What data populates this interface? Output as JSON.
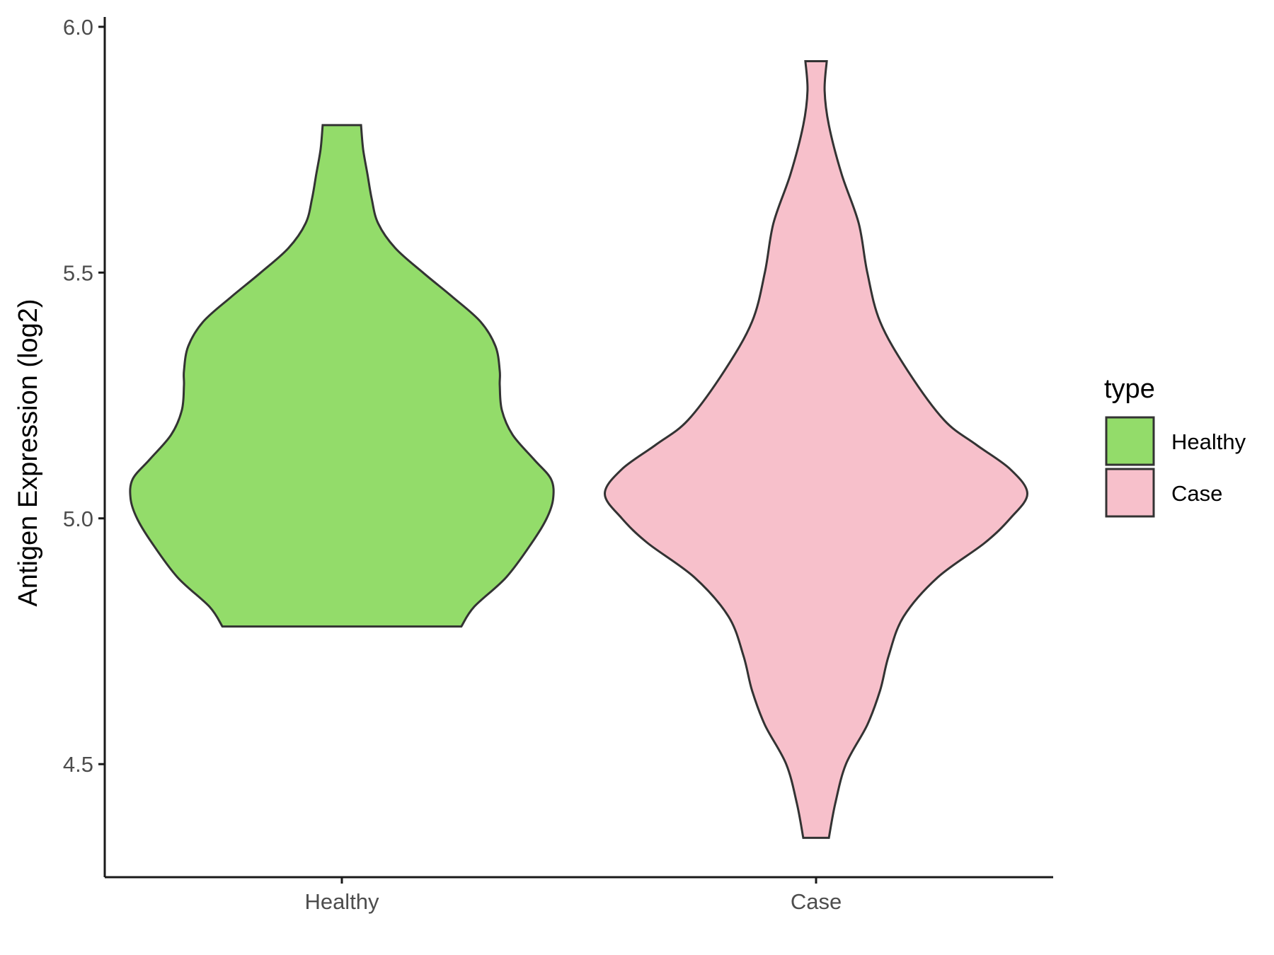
{
  "chart_data": {
    "type": "violin",
    "ylabel": "Antigen Expression (log2)",
    "xlabel": "",
    "categories": [
      "Healthy",
      "Case"
    ],
    "ylim": [
      4.27,
      6.02
    ],
    "yticks": [
      "4.5",
      "5.0",
      "5.5",
      "6.0"
    ],
    "grid": false,
    "legend": {
      "title": "type",
      "position": "right",
      "entries": [
        {
          "label": "Healthy",
          "color": "#93dc6a"
        },
        {
          "label": "Case",
          "color": "#f7c0cb"
        }
      ]
    },
    "series": [
      {
        "category": "Healthy",
        "color": "#93dc6a",
        "min": 4.78,
        "max": 5.8,
        "density": [
          [
            4.78,
            0.56
          ],
          [
            4.82,
            0.62
          ],
          [
            4.88,
            0.77
          ],
          [
            4.95,
            0.89
          ],
          [
            5.0,
            0.96
          ],
          [
            5.04,
            0.99
          ],
          [
            5.08,
            0.98
          ],
          [
            5.12,
            0.9
          ],
          [
            5.17,
            0.8
          ],
          [
            5.22,
            0.75
          ],
          [
            5.27,
            0.74
          ],
          [
            5.3,
            0.74
          ],
          [
            5.35,
            0.72
          ],
          [
            5.4,
            0.65
          ],
          [
            5.45,
            0.52
          ],
          [
            5.5,
            0.38
          ],
          [
            5.55,
            0.25
          ],
          [
            5.6,
            0.17
          ],
          [
            5.65,
            0.14
          ],
          [
            5.7,
            0.12
          ],
          [
            5.75,
            0.1
          ],
          [
            5.8,
            0.09
          ]
        ]
      },
      {
        "category": "Case",
        "color": "#f7c0cb",
        "min": 4.35,
        "max": 5.93,
        "density": [
          [
            4.35,
            0.06
          ],
          [
            4.42,
            0.09
          ],
          [
            4.5,
            0.14
          ],
          [
            4.58,
            0.24
          ],
          [
            4.65,
            0.3
          ],
          [
            4.72,
            0.34
          ],
          [
            4.8,
            0.41
          ],
          [
            4.88,
            0.57
          ],
          [
            4.95,
            0.79
          ],
          [
            5.0,
            0.91
          ],
          [
            5.05,
            0.99
          ],
          [
            5.1,
            0.91
          ],
          [
            5.15,
            0.75
          ],
          [
            5.2,
            0.6
          ],
          [
            5.3,
            0.43
          ],
          [
            5.4,
            0.3
          ],
          [
            5.5,
            0.24
          ],
          [
            5.6,
            0.2
          ],
          [
            5.7,
            0.12
          ],
          [
            5.8,
            0.06
          ],
          [
            5.87,
            0.04
          ],
          [
            5.93,
            0.05
          ]
        ]
      }
    ]
  }
}
